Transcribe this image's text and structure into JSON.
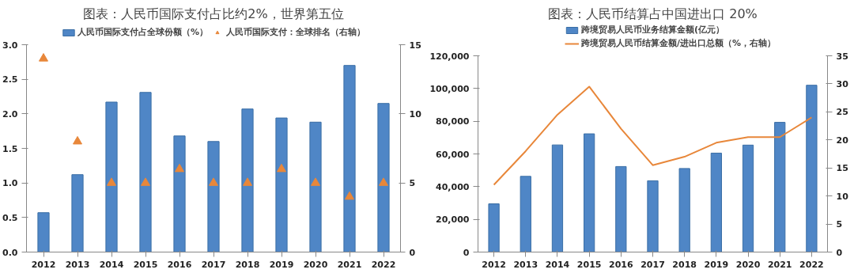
{
  "chart_data": [
    {
      "type": "bar",
      "title": "图表：人民币国际支付占比约2%，世界第五位",
      "categories": [
        "2012",
        "2013",
        "2014",
        "2015",
        "2016",
        "2017",
        "2018",
        "2019",
        "2020",
        "2021",
        "2022"
      ],
      "series": [
        {
          "name": "人民币国际支付占全球份额（%）",
          "color": "#4f86c6",
          "values": [
            0.57,
            1.12,
            2.17,
            2.31,
            1.68,
            1.6,
            2.07,
            1.94,
            1.88,
            2.7,
            2.15
          ]
        },
        {
          "name": "人民币国际支付：全球排名（右轴）",
          "type": "scatter",
          "marker": "triangle",
          "axis": "y2",
          "color": "#e8873a",
          "values": [
            14,
            8,
            5,
            5,
            6,
            5,
            5,
            6,
            5,
            4,
            5
          ]
        }
      ],
      "ylim": [
        0,
        3
      ],
      "yticks": [
        {
          "value": 0,
          "label": "0.0"
        },
        {
          "value": 0.5,
          "label": "0.5"
        },
        {
          "value": 1,
          "label": "1.0"
        },
        {
          "value": 1.5,
          "label": "1.5"
        },
        {
          "value": 2,
          "label": "2.0"
        },
        {
          "value": 2.5,
          "label": "2.5"
        },
        {
          "value": 3,
          "label": "3.0"
        }
      ],
      "y2lim": [
        0,
        15
      ],
      "y2ticks": [
        0,
        5,
        10,
        15
      ],
      "legend": "top",
      "grid": false
    },
    {
      "type": "bar",
      "title": "图表：人民币结算占中国进出口 20%",
      "categories": [
        "2012",
        "2013",
        "2014",
        "2015",
        "2016",
        "2017",
        "2018",
        "2019",
        "2020",
        "2021",
        "2022"
      ],
      "series": [
        {
          "name": "跨境贸易人民币业务结算金额(亿元）",
          "color": "#4f86c6",
          "values": [
            29500,
            46300,
            65500,
            72300,
            52300,
            43600,
            51100,
            60500,
            65400,
            79300,
            102000
          ]
        },
        {
          "name": "跨境贸易人民币结算金额/进出口总额（%，右轴）",
          "type": "line",
          "axis": "y2",
          "color": "#e8873a",
          "values": [
            12,
            18,
            24.5,
            29.5,
            22,
            15.5,
            17,
            19.5,
            20.5,
            20.5,
            24
          ]
        }
      ],
      "ylim": [
        0,
        120000
      ],
      "yticks": [
        {
          "value": 0,
          "label": "0"
        },
        {
          "value": 20000,
          "label": "20,000"
        },
        {
          "value": 40000,
          "label": "40,000"
        },
        {
          "value": 60000,
          "label": "60,000"
        },
        {
          "value": 80000,
          "label": "80,000"
        },
        {
          "value": 100000,
          "label": "100,000"
        },
        {
          "value": 120000,
          "label": "120,000"
        }
      ],
      "y2lim": [
        0,
        35
      ],
      "y2ticks": [
        0,
        5,
        10,
        15,
        20,
        25,
        30,
        35
      ],
      "legend": "top",
      "grid": false
    }
  ]
}
